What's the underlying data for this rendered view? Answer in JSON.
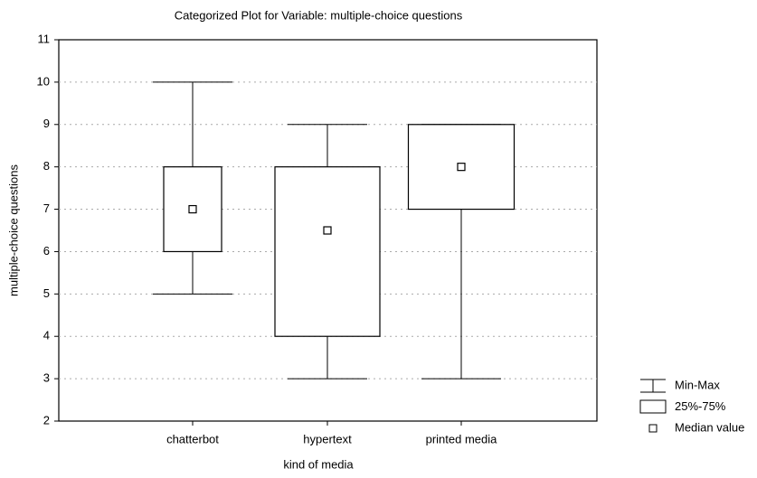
{
  "chart_data": {
    "type": "box",
    "title": "Categorized Plot for Variable: multiple-choice questions",
    "x_label": "kind of media",
    "y_label": "multiple-choice questions",
    "categories": [
      "chatterbot",
      "hypertext",
      "printed media"
    ],
    "min": [
      5,
      3,
      3
    ],
    "q1": [
      6,
      4,
      7
    ],
    "median": [
      7,
      6.5,
      8
    ],
    "q3": [
      8,
      8,
      9
    ],
    "max": [
      10,
      9,
      9
    ],
    "ylim": [
      2,
      11
    ],
    "yticks": [
      2,
      3,
      4,
      5,
      6,
      7,
      8,
      9,
      10,
      11
    ],
    "grid": true,
    "color": "#000000",
    "legend": [
      "Min-Max",
      "25%-75%",
      "Median value"
    ],
    "legend_position": "lower right"
  }
}
